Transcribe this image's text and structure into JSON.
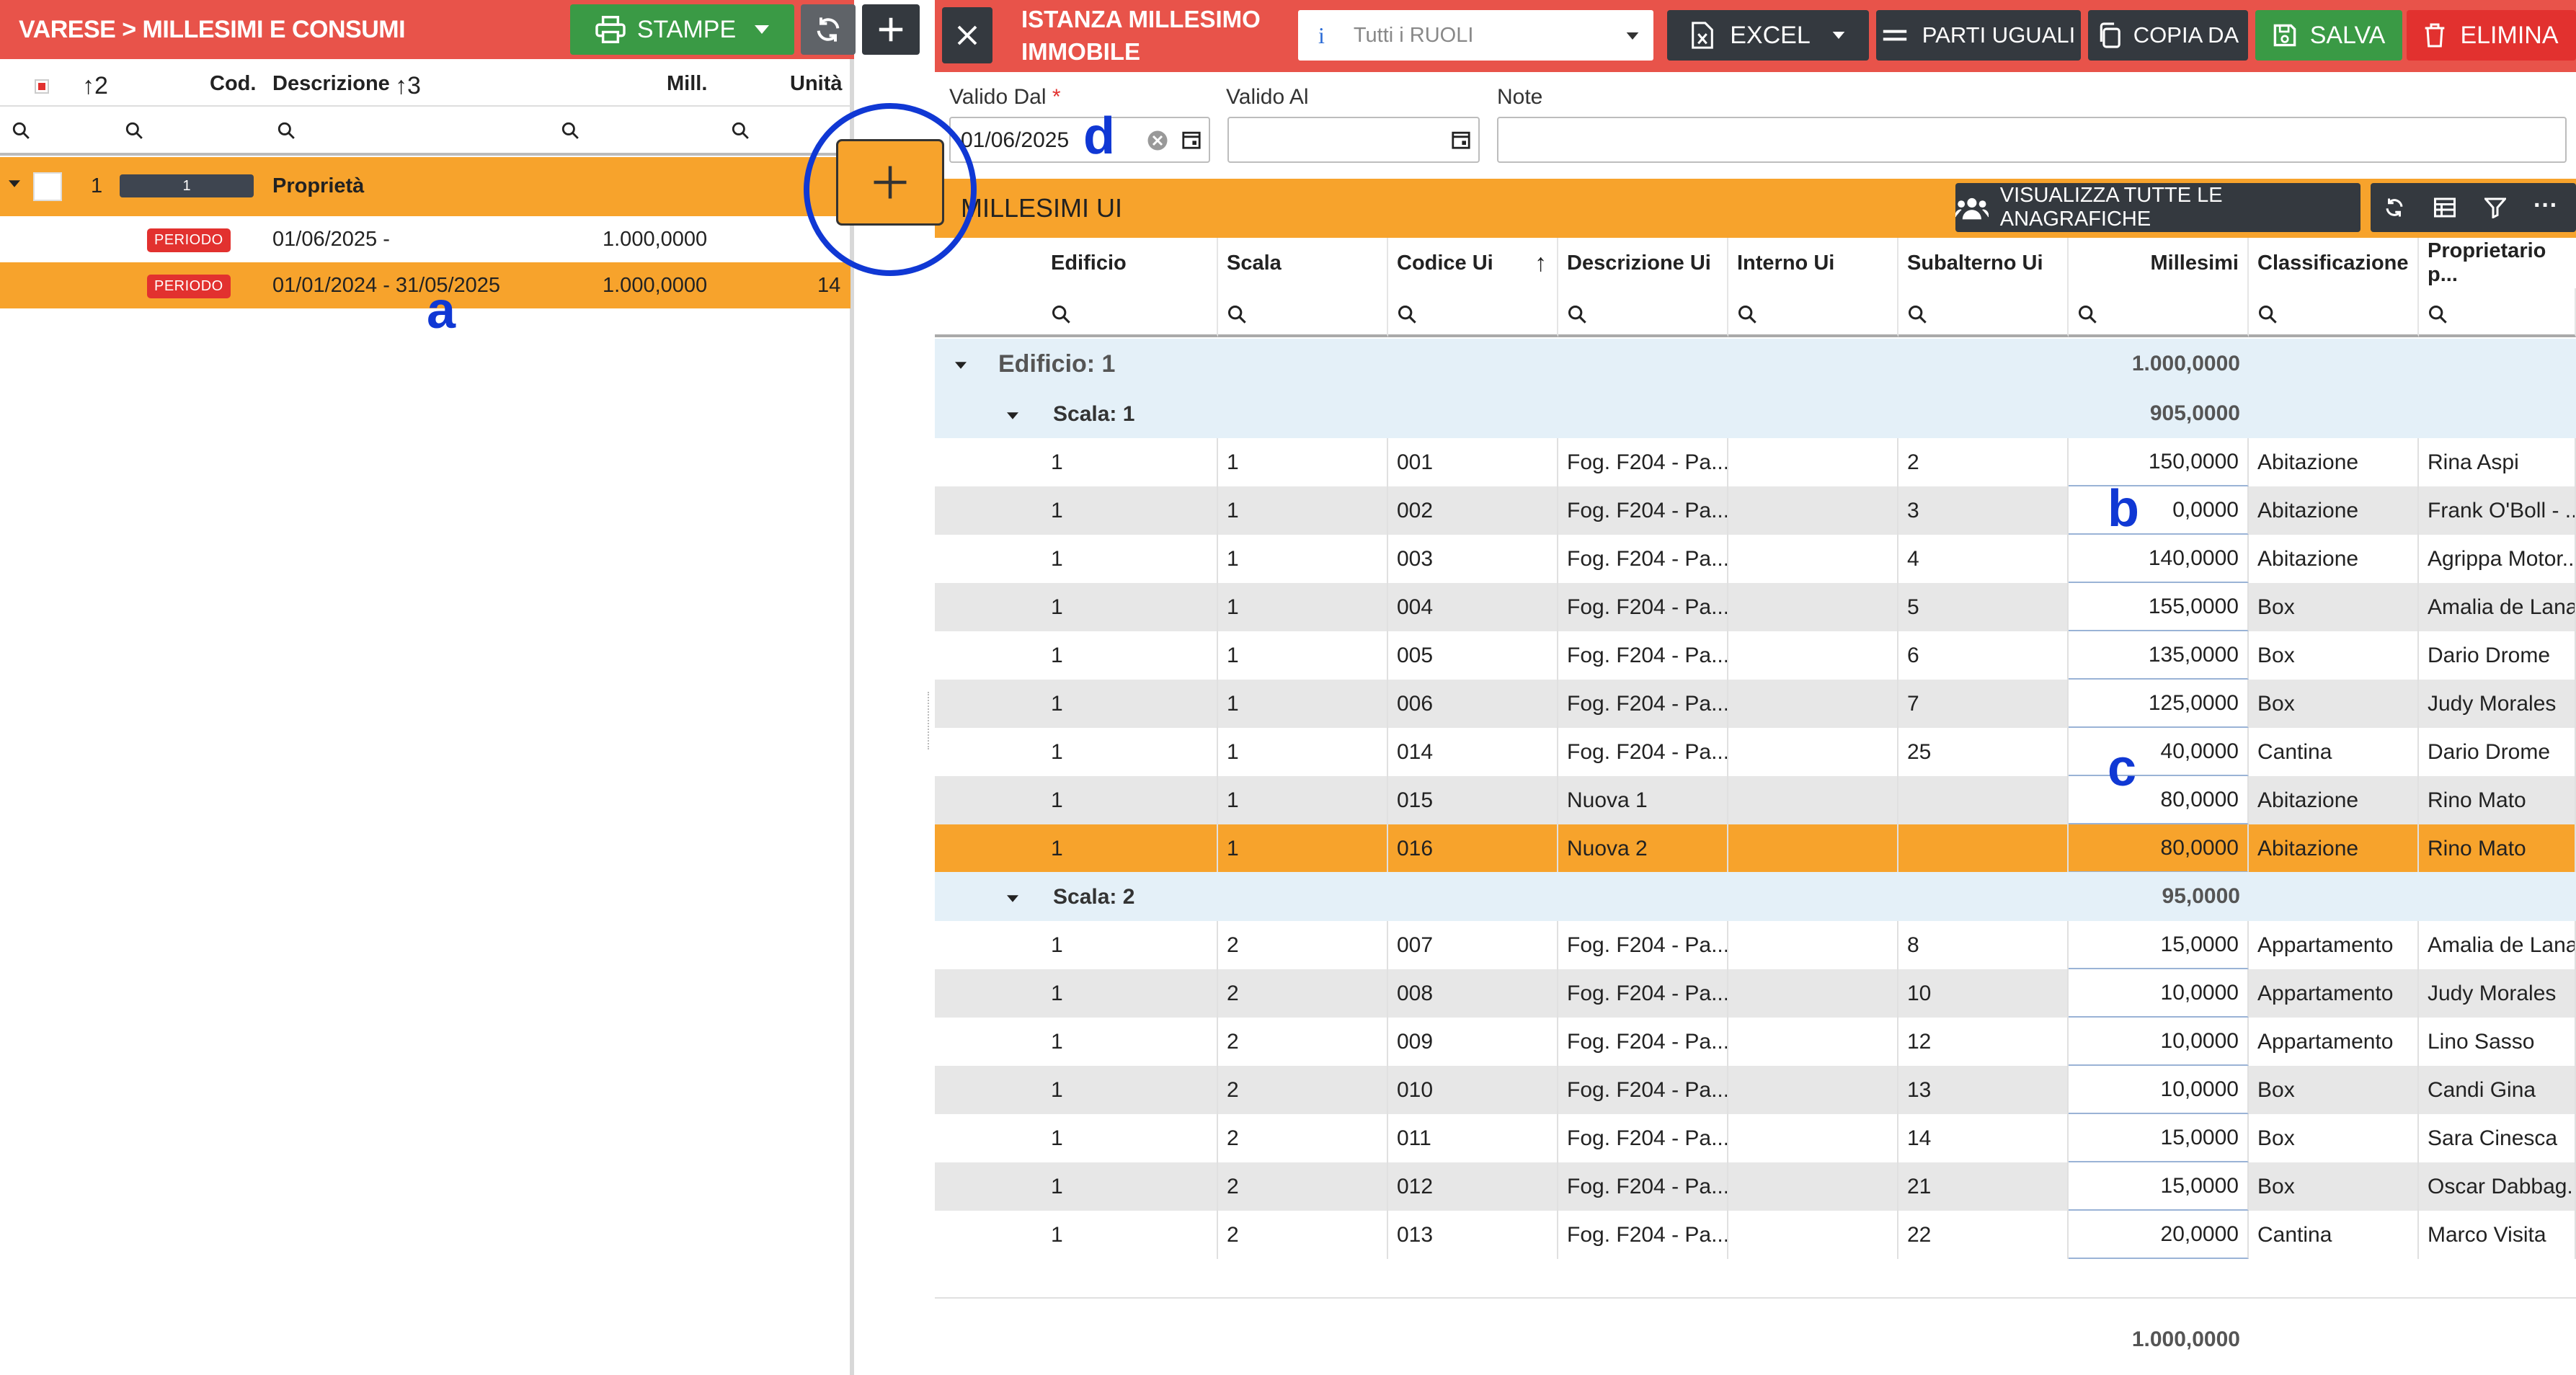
{
  "left_panel": {
    "breadcrumb": "VARESE > MILLESIMI E CONSUMI",
    "stampe_label": "STAMPE",
    "columns": {
      "sort1": "2",
      "cod": "Cod.",
      "descrizione": "Descrizione",
      "sort2": "3",
      "mill": "Mill.",
      "unita": "Unità"
    },
    "group": {
      "cod": "1",
      "tag": "1",
      "descrizione": "Proprietà"
    },
    "rows": [
      {
        "badge": "PERIODO",
        "descrizione": "01/06/2025 -",
        "mill": "1.000,0000",
        "unita": ""
      },
      {
        "badge": "PERIODO",
        "descrizione": "01/01/2024 - 31/05/2025",
        "mill": "1.000,0000",
        "unita": "14"
      }
    ]
  },
  "right_panel": {
    "title_line1": "ISTANZA MILLESIMO",
    "title_line2": "IMMOBILE",
    "ruoli_placeholder": "Tutti i RUOLI",
    "excel_label": "EXCEL",
    "parti_uguali_label": "PARTI UGUALI",
    "copia_da_label": "COPIA DA",
    "salva_label": "SALVA",
    "elimina_label": "ELIMINA",
    "valido_dal_label": "Valido Dal",
    "valido_dal_required": "*",
    "valido_dal_value": "01/06/2025",
    "valido_al_label": "Valido Al",
    "valido_al_value": "",
    "note_label": "Note",
    "note_value": "",
    "section_title": "MILLESIMI UI",
    "visualizza_label": "VISUALIZZA TUTTE LE ANAGRAFICHE",
    "columns": [
      "Edificio",
      "Scala",
      "Codice Ui",
      "Descrizione Ui",
      "Interno Ui",
      "Subalterno Ui",
      "Millesimi",
      "Classificazione",
      "Proprietario p..."
    ],
    "group_edificio": {
      "label": "Edificio: 1",
      "total": "1.000,0000"
    },
    "group_scala1": {
      "label": "Scala: 1",
      "total": "905,0000"
    },
    "group_scala2": {
      "label": "Scala: 2",
      "total": "95,0000"
    },
    "scala1_rows": [
      {
        "edificio": "1",
        "scala": "1",
        "codice": "001",
        "descrizione": "Fog. F204 - Pa...",
        "interno": "",
        "subalterno": "2",
        "millesimi": "150,0000",
        "classificazione": "Abitazione",
        "proprietario": "Rina Aspi"
      },
      {
        "edificio": "1",
        "scala": "1",
        "codice": "002",
        "descrizione": "Fog. F204 - Pa...",
        "interno": "",
        "subalterno": "3",
        "millesimi": "0,0000",
        "classificazione": "Abitazione",
        "proprietario": "Frank O'Boll - ..."
      },
      {
        "edificio": "1",
        "scala": "1",
        "codice": "003",
        "descrizione": "Fog. F204 - Pa...",
        "interno": "",
        "subalterno": "4",
        "millesimi": "140,0000",
        "classificazione": "Abitazione",
        "proprietario": "Agrippa Motor..."
      },
      {
        "edificio": "1",
        "scala": "1",
        "codice": "004",
        "descrizione": "Fog. F204 - Pa...",
        "interno": "",
        "subalterno": "5",
        "millesimi": "155,0000",
        "classificazione": "Box",
        "proprietario": "Amalia de Lana"
      },
      {
        "edificio": "1",
        "scala": "1",
        "codice": "005",
        "descrizione": "Fog. F204 - Pa...",
        "interno": "",
        "subalterno": "6",
        "millesimi": "135,0000",
        "classificazione": "Box",
        "proprietario": "Dario Drome"
      },
      {
        "edificio": "1",
        "scala": "1",
        "codice": "006",
        "descrizione": "Fog. F204 - Pa...",
        "interno": "",
        "subalterno": "7",
        "millesimi": "125,0000",
        "classificazione": "Box",
        "proprietario": "Judy Morales"
      },
      {
        "edificio": "1",
        "scala": "1",
        "codice": "014",
        "descrizione": "Fog. F204 - Pa...",
        "interno": "",
        "subalterno": "25",
        "millesimi": "40,0000",
        "classificazione": "Cantina",
        "proprietario": "Dario Drome"
      },
      {
        "edificio": "1",
        "scala": "1",
        "codice": "015",
        "descrizione": "Nuova 1",
        "interno": "",
        "subalterno": "",
        "millesimi": "80,0000",
        "classificazione": "Abitazione",
        "proprietario": "Rino Mato"
      },
      {
        "edificio": "1",
        "scala": "1",
        "codice": "016",
        "descrizione": "Nuova 2",
        "interno": "",
        "subalterno": "",
        "millesimi": "80,0000",
        "classificazione": "Abitazione",
        "proprietario": "Rino Mato"
      }
    ],
    "scala2_rows": [
      {
        "edificio": "1",
        "scala": "2",
        "codice": "007",
        "descrizione": "Fog. F204 - Pa...",
        "interno": "",
        "subalterno": "8",
        "millesimi": "15,0000",
        "classificazione": "Appartamento",
        "proprietario": "Amalia de Lana"
      },
      {
        "edificio": "1",
        "scala": "2",
        "codice": "008",
        "descrizione": "Fog. F204 - Pa...",
        "interno": "",
        "subalterno": "10",
        "millesimi": "10,0000",
        "classificazione": "Appartamento",
        "proprietario": "Judy Morales"
      },
      {
        "edificio": "1",
        "scala": "2",
        "codice": "009",
        "descrizione": "Fog. F204 - Pa...",
        "interno": "",
        "subalterno": "12",
        "millesimi": "10,0000",
        "classificazione": "Appartamento",
        "proprietario": "Lino Sasso"
      },
      {
        "edificio": "1",
        "scala": "2",
        "codice": "010",
        "descrizione": "Fog. F204 - Pa...",
        "interno": "",
        "subalterno": "13",
        "millesimi": "10,0000",
        "classificazione": "Box",
        "proprietario": "Candi Gina"
      },
      {
        "edificio": "1",
        "scala": "2",
        "codice": "011",
        "descrizione": "Fog. F204 - Pa...",
        "interno": "",
        "subalterno": "14",
        "millesimi": "15,0000",
        "classificazione": "Box",
        "proprietario": "Sara Cinesca"
      },
      {
        "edificio": "1",
        "scala": "2",
        "codice": "012",
        "descrizione": "Fog. F204 - Pa...",
        "interno": "",
        "subalterno": "21",
        "millesimi": "15,0000",
        "classificazione": "Box",
        "proprietario": "Oscar Dabbag..."
      },
      {
        "edificio": "1",
        "scala": "2",
        "codice": "013",
        "descrizione": "Fog. F204 - Pa...",
        "interno": "",
        "subalterno": "22",
        "millesimi": "20,0000",
        "classificazione": "Cantina",
        "proprietario": "Marco Visita"
      }
    ],
    "footer_total": "1.000,0000"
  },
  "annotations": {
    "a": "a",
    "b": "b",
    "c": "c",
    "d": "d"
  },
  "colors": {
    "header_red": "#e8534a",
    "orange": "#f7a32c",
    "green": "#3a9a45",
    "annotation_blue": "#1038d4"
  }
}
